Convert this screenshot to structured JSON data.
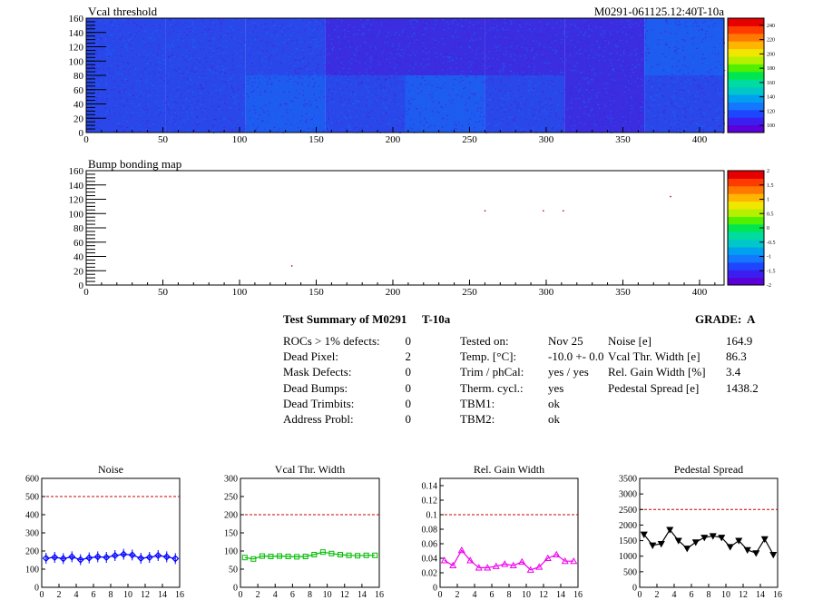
{
  "colors": {
    "map_base": "#2b3fe8",
    "noise_series": "#0000ff",
    "vcal_series": "#00bb00",
    "gain_series": "#ee00ee",
    "pedestal_series": "#000000",
    "limit_line": "#cc0000"
  },
  "chart_data": [
    {
      "type": "heatmap",
      "title": "Vcal threshold",
      "subtitle": "M0291-061125.12:40T-10a",
      "xlim": [
        0,
        416
      ],
      "ylim": [
        0,
        160
      ],
      "xticks": [
        0,
        50,
        100,
        150,
        200,
        250,
        300,
        350,
        400
      ],
      "yticks": [
        0,
        20,
        40,
        60,
        80,
        100,
        120,
        140,
        160
      ],
      "colorbar_ticks": [
        100,
        120,
        140,
        160,
        180,
        200,
        220,
        240
      ],
      "colorbar_range": [
        90,
        250
      ],
      "roc_means": [
        [
          108,
          110,
          112,
          108,
          112,
          110,
          105,
          108
        ],
        [
          106,
          108,
          110,
          105,
          102,
          104,
          104,
          112
        ]
      ]
    },
    {
      "type": "heatmap",
      "title": "Bump bonding map",
      "xlim": [
        0,
        416
      ],
      "ylim": [
        0,
        160
      ],
      "xticks": [
        0,
        50,
        100,
        150,
        200,
        250,
        300,
        350,
        400
      ],
      "yticks": [
        0,
        20,
        40,
        60,
        80,
        100,
        120,
        140,
        160
      ],
      "colorbar_ticks": [
        "2",
        "1.5",
        "1",
        "0.5",
        "0",
        "-0.5",
        "-1",
        "-1.5",
        "-2"
      ],
      "colorbar_range": [
        -2,
        2
      ],
      "points": [
        [
          134,
          27
        ],
        [
          260,
          104
        ],
        [
          298,
          104
        ],
        [
          311,
          104
        ],
        [
          381,
          124
        ]
      ]
    },
    {
      "type": "line",
      "title": "Noise",
      "xlim": [
        0,
        16
      ],
      "ylim": [
        0,
        600
      ],
      "xticks": [
        0,
        2,
        4,
        6,
        8,
        10,
        12,
        14,
        16
      ],
      "yticks": [
        0,
        100,
        200,
        300,
        400,
        500,
        600
      ],
      "limit": 500,
      "marker": "diamond",
      "x": [
        0.5,
        1.5,
        2.5,
        3.5,
        4.5,
        5.5,
        6.5,
        7.5,
        8.5,
        9.5,
        10.5,
        11.5,
        12.5,
        13.5,
        14.5,
        15.5
      ],
      "values": [
        160,
        165,
        158,
        168,
        152,
        162,
        168,
        165,
        175,
        182,
        178,
        160,
        165,
        175,
        168,
        158
      ]
    },
    {
      "type": "line",
      "title": "Vcal Thr. Width",
      "xlim": [
        0,
        16
      ],
      "ylim": [
        0,
        300
      ],
      "xticks": [
        0,
        2,
        4,
        6,
        8,
        10,
        12,
        14,
        16
      ],
      "yticks": [
        0,
        50,
        100,
        150,
        200,
        250,
        300
      ],
      "limit": 200,
      "marker": "square",
      "x": [
        0.5,
        1.5,
        2.5,
        3.5,
        4.5,
        5.5,
        6.5,
        7.5,
        8.5,
        9.5,
        10.5,
        11.5,
        12.5,
        13.5,
        14.5,
        15.5
      ],
      "values": [
        82,
        78,
        86,
        85,
        86,
        85,
        84,
        85,
        90,
        97,
        93,
        90,
        88,
        87,
        88,
        88
      ]
    },
    {
      "type": "line",
      "title": "Rel. Gain Width",
      "xlim": [
        0,
        16
      ],
      "ylim": [
        0,
        0.15
      ],
      "xticks": [
        0,
        2,
        4,
        6,
        8,
        10,
        12,
        14,
        16
      ],
      "yticks": [
        0,
        0.02,
        0.04,
        0.06,
        0.08,
        0.1,
        0.12,
        0.14
      ],
      "ytick_labels": [
        "0",
        "0.02",
        "0.04",
        "0.06",
        "0.08",
        "0.1",
        "0.12",
        "0.14"
      ],
      "limit": 0.1,
      "marker": "triangle",
      "x": [
        0.5,
        1.5,
        2.5,
        3.5,
        4.5,
        5.5,
        6.5,
        7.5,
        8.5,
        9.5,
        10.5,
        11.5,
        12.5,
        13.5,
        14.5,
        15.5
      ],
      "values": [
        0.037,
        0.03,
        0.051,
        0.037,
        0.027,
        0.027,
        0.029,
        0.032,
        0.03,
        0.035,
        0.024,
        0.028,
        0.04,
        0.045,
        0.036,
        0.036
      ]
    },
    {
      "type": "line",
      "title": "Pedestal Spread",
      "xlim": [
        0,
        16
      ],
      "ylim": [
        0,
        3500
      ],
      "xticks": [
        0,
        2,
        4,
        6,
        8,
        10,
        12,
        14,
        16
      ],
      "yticks": [
        0,
        500,
        1000,
        1500,
        2000,
        2500,
        3000,
        3500
      ],
      "limit": 2500,
      "marker": "triangle-down",
      "x": [
        0.5,
        1.5,
        2.5,
        3.5,
        4.5,
        5.5,
        6.5,
        7.5,
        8.5,
        9.5,
        10.5,
        11.5,
        12.5,
        13.5,
        14.5,
        15.5
      ],
      "values": [
        1700,
        1350,
        1400,
        1850,
        1500,
        1250,
        1450,
        1600,
        1650,
        1600,
        1300,
        1500,
        1200,
        1100,
        1550,
        1050
      ]
    }
  ],
  "summary": {
    "title": "Test Summary of M0291",
    "temp_label": "T-10a",
    "grade": "GRADE:  A",
    "defects": [
      {
        "label": "ROCs > 1% defects:",
        "value": "0"
      },
      {
        "label": "Dead Pixel:",
        "value": "2"
      },
      {
        "label": "Mask Defects:",
        "value": "0"
      },
      {
        "label": "Dead Bumps:",
        "value": "0"
      },
      {
        "label": "Dead Trimbits:",
        "value": "0"
      },
      {
        "label": "Address Probl:",
        "value": "0"
      }
    ],
    "conditions": [
      {
        "label": "Tested on:",
        "value": "Nov 25"
      },
      {
        "label": "Temp. [°C]:",
        "value": "-10.0 +- 0.0"
      },
      {
        "label": "Trim / phCal:",
        "value": "yes / yes"
      },
      {
        "label": "Therm. cycl.:",
        "value": "yes"
      },
      {
        "label": "TBM1:",
        "value": "ok"
      },
      {
        "label": "TBM2:",
        "value": "ok"
      }
    ],
    "results": [
      {
        "label": "Noise [e]",
        "value": "164.9"
      },
      {
        "label": "Vcal Thr. Width [e]",
        "value": "86.3"
      },
      {
        "label": "Rel. Gain Width [%]",
        "value": "3.4"
      },
      {
        "label": "Pedestal Spread [e]",
        "value": "1438.2"
      }
    ]
  }
}
